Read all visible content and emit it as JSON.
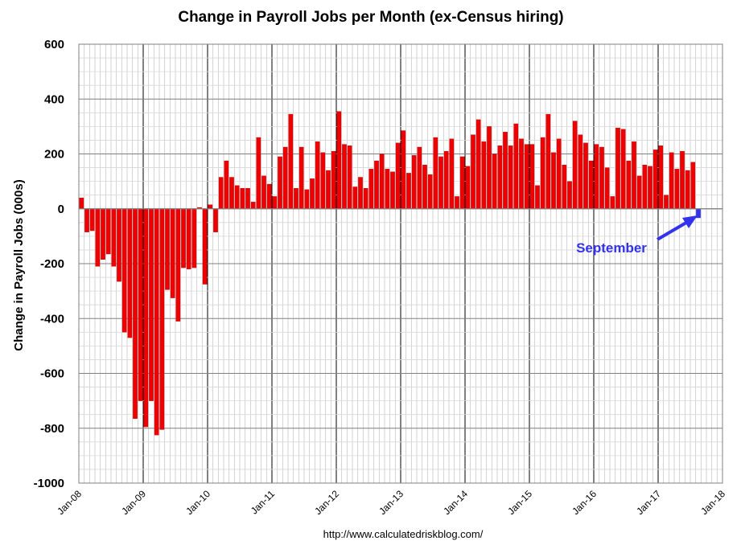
{
  "chart_data": {
    "type": "bar",
    "title": "Change in Payroll Jobs per Month (ex-Census hiring)",
    "ylabel": "Change in Payroll Jobs (000s)",
    "xlabel": "",
    "ylim": [
      -1000,
      600
    ],
    "yticks": [
      "600",
      "400",
      "200",
      "0",
      "-200",
      "-400",
      "-600",
      "-800",
      "-1000"
    ],
    "ytick_values": [
      600,
      400,
      200,
      0,
      -200,
      -400,
      -600,
      -800,
      -1000
    ],
    "xticks": [
      "Jan-08",
      "Jan-09",
      "Jan-10",
      "Jan-11",
      "Jan-12",
      "Jan-13",
      "Jan-14",
      "Jan-15",
      "Jan-16",
      "Jan-17",
      "Jan-18"
    ],
    "grid": true,
    "start_month": "Jan-08",
    "bar_color": "#ee0000",
    "highlight_color": "#3333ee",
    "values": [
      40,
      -85,
      -80,
      -210,
      -185,
      -165,
      -210,
      -265,
      -450,
      -470,
      -765,
      -700,
      -795,
      -700,
      -825,
      -805,
      -295,
      -325,
      -410,
      -215,
      -220,
      -215,
      5,
      -275,
      15,
      -85,
      115,
      175,
      115,
      85,
      75,
      75,
      25,
      260,
      120,
      90,
      45,
      190,
      225,
      345,
      75,
      225,
      70,
      110,
      245,
      205,
      140,
      210,
      355,
      235,
      230,
      80,
      115,
      75,
      145,
      175,
      200,
      145,
      135,
      240,
      285,
      130,
      195,
      225,
      160,
      125,
      260,
      190,
      210,
      255,
      45,
      190,
      155,
      270,
      325,
      245,
      300,
      200,
      230,
      280,
      230,
      310,
      255,
      235,
      235,
      85,
      260,
      345,
      205,
      255,
      160,
      100,
      320,
      270,
      240,
      175,
      235,
      225,
      150,
      45,
      295,
      290,
      175,
      245,
      120,
      160,
      155,
      215,
      230,
      50,
      205,
      145,
      210,
      140,
      170,
      -33
    ],
    "highlight": {
      "label": "September",
      "value": -33
    }
  },
  "footer": {
    "url": "http://www.calculatedriskblog.com/"
  }
}
